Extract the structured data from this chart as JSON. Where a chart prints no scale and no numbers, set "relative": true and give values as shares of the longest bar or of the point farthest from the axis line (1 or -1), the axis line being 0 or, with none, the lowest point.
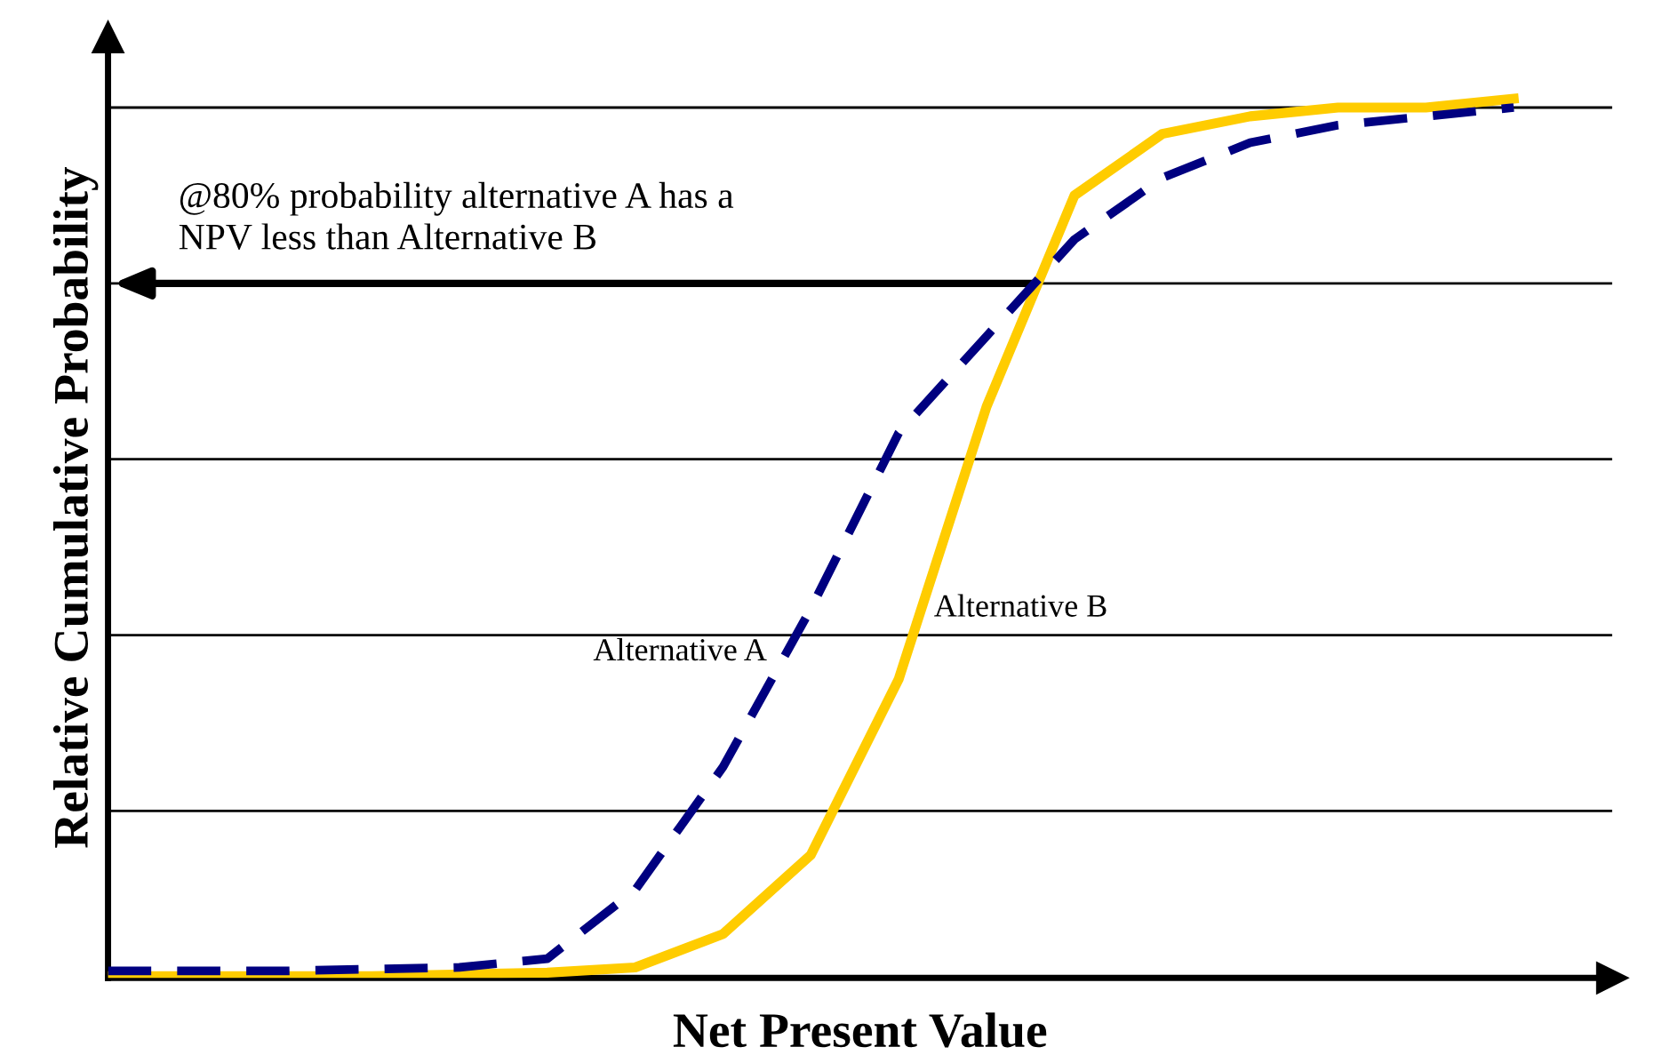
{
  "chart_data": {
    "type": "line",
    "relative": true,
    "xlabel": "Net Present Value",
    "ylabel": "Relative Cumulative Probability",
    "categories": [
      null,
      null,
      null,
      null,
      null,
      null,
      null,
      null,
      null,
      null,
      null,
      null,
      null,
      null,
      null,
      null,
      null
    ],
    "series": [
      {
        "name": "Alternative A",
        "color": "#000080",
        "line_style": "dashed",
        "values": [
          0.008,
          0.008,
          0.008,
          0.01,
          0.012,
          0.022,
          0.1,
          0.24,
          0.42,
          0.62,
          0.73,
          0.84,
          0.91,
          0.95,
          0.97,
          0.98,
          0.99
        ]
      },
      {
        "name": "Alternative B",
        "color": "#ffcc00",
        "line_style": "solid",
        "values": [
          0.002,
          0.002,
          0.002,
          0.002,
          0.004,
          0.006,
          0.012,
          0.05,
          0.14,
          0.34,
          0.65,
          0.89,
          0.96,
          0.98,
          0.99,
          0.99,
          1.0
        ]
      }
    ],
    "ref_lines": [
      {
        "axis": "y",
        "value": 0.19,
        "color": "#000000"
      },
      {
        "axis": "y",
        "value": 0.39,
        "color": "#000000"
      },
      {
        "axis": "y",
        "value": 0.59,
        "color": "#000000"
      },
      {
        "axis": "y",
        "value": 0.79,
        "color": "#000000"
      },
      {
        "axis": "y",
        "value": 0.99,
        "color": "#000000"
      }
    ],
    "annotations": [
      {
        "text": "@80% probability alternative A has a\nNPV less than Alternative B",
        "y": 0.79
      }
    ],
    "legend": false,
    "tick_labels": false
  }
}
